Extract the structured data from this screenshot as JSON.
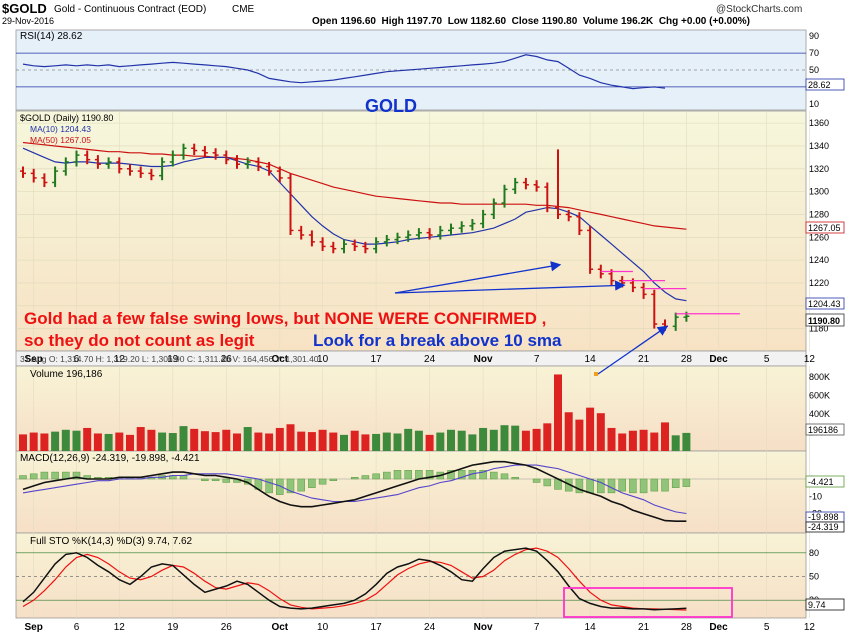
{
  "header": {
    "symbol": "$GOLD",
    "name": "Gold - Continuous Contract (EOD)",
    "exchange": "CME",
    "date": "29-Nov-2016",
    "copyright": "@StockCharts.com",
    "open_label": "Open",
    "open": "1196.60",
    "high_label": "High",
    "high": "1197.70",
    "low_label": "Low",
    "low": "1182.60",
    "close_label": "Close",
    "close": "1190.80",
    "volume_label": "Volume",
    "volume": "196.2K",
    "chg_label": "Chg",
    "chg": "+0.00 (+0.00%)"
  },
  "colors": {
    "up": "#1f7a1f",
    "down": "#cc1111",
    "ma10": "#2233aa",
    "ma50": "#cc1111",
    "annotation_red": "#ee1111",
    "annotation_blue": "#1133cc",
    "box": "#ff33cc",
    "panel_bg_top": "#f6f7dc",
    "panel_bg_bottom": "#f7e2c4",
    "rsi_bg": "#e6f0f8"
  },
  "chart_data": [
    {
      "type": "line",
      "panel": "rsi",
      "label": "RSI(14) 28.62",
      "last_value": "28.62",
      "y_ticks": [
        "90",
        "70",
        "50",
        "30",
        "10"
      ],
      "values": [
        57,
        55,
        54,
        55,
        56,
        55,
        56,
        55,
        56,
        54,
        55,
        56,
        57,
        58,
        59,
        58,
        57,
        56,
        55,
        54,
        52,
        50,
        46,
        40,
        38,
        36,
        35,
        36,
        37,
        38,
        40,
        42,
        44,
        46,
        48,
        49,
        50,
        51,
        52,
        53,
        54,
        55,
        56,
        57,
        58,
        60,
        64,
        68,
        66,
        62,
        60,
        52,
        44,
        40,
        35,
        32,
        30,
        28,
        29,
        30,
        28.62
      ]
    },
    {
      "type": "ohlc",
      "panel": "price",
      "title": "GOLD",
      "label": "$GOLD (Daily) 1190.80",
      "ma10_label": "MA(10) 1204.43",
      "ma50_label": "MA(50) 1267.05",
      "tag_ma50": "1267.05",
      "tag_ma10": "1204.43",
      "tag_close": "1190.80",
      "ylim": [
        1163,
        1368
      ],
      "y_ticks": [
        "1360",
        "1340",
        "1320",
        "1300",
        "1280",
        "1260",
        "1240",
        "1220",
        "1200",
        "1180"
      ],
      "x_labels": [
        "Sep",
        "6",
        "12",
        "19",
        "26",
        "Oct",
        "10",
        "17",
        "24",
        "Nov",
        "7",
        "14",
        "21",
        "28",
        "Dec",
        "5",
        "12"
      ],
      "info_bar": "31 Aug O: 1,314.70  H: 1,319.20  L: 1,306.90  C: 1,311.40  V: 164,456  Y: 1,301.40",
      "close": [
        1316,
        1312,
        1308,
        1318,
        1326,
        1332,
        1328,
        1324,
        1326,
        1320,
        1318,
        1316,
        1314,
        1326,
        1332,
        1338,
        1336,
        1334,
        1332,
        1328,
        1324,
        1326,
        1322,
        1318,
        1312,
        1266,
        1262,
        1256,
        1252,
        1250,
        1254,
        1252,
        1250,
        1256,
        1258,
        1260,
        1262,
        1264,
        1262,
        1266,
        1268,
        1270,
        1272,
        1280,
        1290,
        1302,
        1308,
        1306,
        1304,
        1286,
        1280,
        1278,
        1266,
        1232,
        1228,
        1222,
        1220,
        1216,
        1210,
        1184,
        1182,
        1190,
        1190.8
      ],
      "ma10": [
        1338,
        1334,
        1330,
        1326,
        1325,
        1326,
        1326,
        1325,
        1325,
        1325,
        1324,
        1323,
        1322,
        1322,
        1323,
        1326,
        1328,
        1330,
        1330,
        1330,
        1327,
        1324,
        1322,
        1318,
        1308,
        1298,
        1288,
        1278,
        1270,
        1263,
        1258,
        1256,
        1254,
        1254,
        1255,
        1256,
        1258,
        1259,
        1260,
        1261,
        1262,
        1263,
        1264,
        1266,
        1268,
        1272,
        1276,
        1282,
        1284,
        1286,
        1285,
        1282,
        1278,
        1270,
        1262,
        1254,
        1246,
        1238,
        1230,
        1220,
        1212,
        1206,
        1204.43
      ],
      "ma50": [
        1343,
        1342,
        1341,
        1340,
        1339,
        1338,
        1337,
        1336,
        1335,
        1335,
        1334,
        1334,
        1333,
        1333,
        1332,
        1332,
        1331,
        1331,
        1330,
        1330,
        1329,
        1328,
        1326,
        1324,
        1320,
        1316,
        1313,
        1310,
        1307,
        1304,
        1302,
        1300,
        1298,
        1296,
        1295,
        1294,
        1293,
        1292,
        1291,
        1290,
        1290,
        1289,
        1289,
        1289,
        1289,
        1289,
        1289,
        1289,
        1288,
        1288,
        1287,
        1286,
        1284,
        1282,
        1280,
        1278,
        1276,
        1274,
        1272,
        1270,
        1269,
        1268,
        1267.05
      ]
    },
    {
      "type": "bar",
      "panel": "volume",
      "label": "Volume 196,186",
      "last_value": "196186",
      "y_ticks": [
        "800K",
        "600K",
        "400K",
        "200K"
      ],
      "values": [
        180000,
        200000,
        190000,
        210000,
        230000,
        220000,
        250000,
        190000,
        185000,
        200000,
        175000,
        260000,
        230000,
        200000,
        195000,
        270000,
        240000,
        215000,
        205000,
        230000,
        190000,
        260000,
        200000,
        190000,
        250000,
        290000,
        210000,
        205000,
        230000,
        200000,
        175000,
        220000,
        180000,
        185000,
        200000,
        190000,
        240000,
        220000,
        175000,
        200000,
        230000,
        220000,
        180000,
        250000,
        230000,
        280000,
        275000,
        220000,
        240000,
        300000,
        830000,
        420000,
        340000,
        470000,
        410000,
        250000,
        190000,
        220000,
        230000,
        200000,
        310000,
        170000,
        196186
      ]
    },
    {
      "type": "line",
      "panel": "macd",
      "label": "MACD(12,26,9) -24.319, -19.898, -4.421",
      "tag_hist": "-4.421",
      "tag_signal": "-19.898",
      "tag_macd": "-24.319",
      "y_ticks": [
        "0",
        "-10",
        "-20"
      ],
      "macd": [
        -6,
        -4,
        -2,
        -1,
        0,
        1,
        0,
        0,
        0,
        1,
        1,
        1,
        2,
        3,
        4,
        4,
        3,
        2,
        2,
        1,
        0,
        -2,
        -6,
        -10,
        -13,
        -15,
        -16,
        -16,
        -15,
        -14,
        -13,
        -12,
        -10,
        -8,
        -6,
        -4,
        -2,
        0,
        1,
        2,
        4,
        6,
        8,
        9,
        10,
        10,
        9,
        8,
        6,
        3,
        0,
        -3,
        -6,
        -8,
        -10,
        -13,
        -15,
        -18,
        -20,
        -22,
        -24,
        -24.319,
        -24.319
      ],
      "signal": [
        -8,
        -7,
        -6,
        -5,
        -4,
        -3,
        -2,
        -1,
        -1,
        0,
        0,
        0,
        1,
        1,
        2,
        2,
        3,
        3,
        3,
        3,
        2,
        1,
        0,
        -2,
        -4,
        -7,
        -9,
        -11,
        -12,
        -13,
        -13,
        -13,
        -12,
        -11,
        -10,
        -9,
        -7,
        -5,
        -4,
        -2,
        -1,
        1,
        3,
        4,
        6,
        7,
        8,
        8,
        8,
        7,
        6,
        4,
        2,
        0,
        -2,
        -5,
        -8,
        -10,
        -12,
        -15,
        -17,
        -19,
        -19.898
      ],
      "histogram": [
        2,
        3,
        4,
        4,
        4,
        4,
        2,
        1,
        1,
        1,
        1,
        1,
        1,
        2,
        2,
        2,
        0,
        -1,
        -1,
        -2,
        -2,
        -3,
        -6,
        -8,
        -9,
        -8,
        -7,
        -5,
        -3,
        -1,
        0,
        1,
        2,
        3,
        4,
        5,
        5,
        5,
        5,
        4,
        5,
        5,
        5,
        5,
        4,
        3,
        1,
        0,
        -2,
        -4,
        -6,
        -7,
        -8,
        -8,
        -8,
        -8,
        -7,
        -8,
        -8,
        -7,
        -7,
        -5,
        -4.421
      ]
    },
    {
      "type": "line",
      "panel": "stochastic",
      "label": "Full STO %K(14,3) %D(3) 9.74, 7.62",
      "tag_value": "9.74",
      "y_ticks": [
        "80",
        "50",
        "20"
      ],
      "k": [
        18,
        30,
        48,
        66,
        78,
        80,
        74,
        64,
        56,
        46,
        40,
        50,
        62,
        66,
        64,
        52,
        40,
        30,
        34,
        38,
        44,
        40,
        30,
        20,
        12,
        10,
        9,
        10,
        12,
        14,
        16,
        20,
        28,
        40,
        54,
        62,
        66,
        72,
        70,
        64,
        56,
        46,
        44,
        60,
        74,
        82,
        84,
        86,
        82,
        70,
        56,
        38,
        22,
        16,
        12,
        10,
        10,
        9,
        9,
        8,
        8.5,
        9,
        9.74
      ],
      "d": [
        12,
        20,
        32,
        46,
        62,
        74,
        78,
        74,
        66,
        56,
        48,
        46,
        50,
        58,
        64,
        62,
        54,
        44,
        36,
        34,
        38,
        42,
        40,
        32,
        22,
        14,
        11,
        9,
        10,
        11,
        13,
        16,
        20,
        28,
        40,
        52,
        60,
        66,
        69,
        68,
        64,
        56,
        48,
        50,
        58,
        70,
        78,
        84,
        86,
        82,
        74,
        60,
        44,
        30,
        20,
        14,
        12,
        10,
        9,
        9,
        8.5,
        8,
        7.62
      ]
    }
  ],
  "annotations": {
    "title": "GOLD",
    "line1": "Gold had a few false swing lows, but NONE WERE CONFIRMED ,",
    "line2": "so they do not count as legit",
    "blue_text": "Look for a break above 10 sma"
  }
}
